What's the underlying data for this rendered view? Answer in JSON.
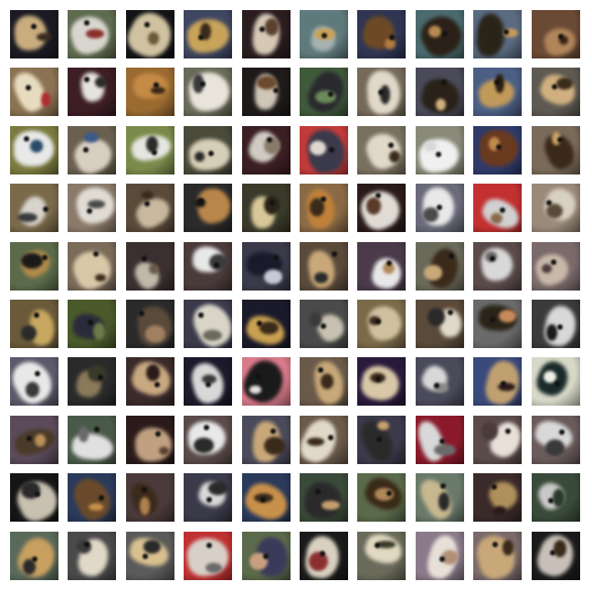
{
  "grid": {
    "rows": 10,
    "cols": 10,
    "samples": [
      {
        "bg": "#1b1a22",
        "fg": "#c9ad7e",
        "fg2": "#3a2c1f"
      },
      {
        "bg": "#5e6b4f",
        "fg": "#d9d6cf",
        "fg2": "#8a2f2a"
      },
      {
        "bg": "#121316",
        "fg": "#d0c2a0",
        "fg2": "#6a5a3a"
      },
      {
        "bg": "#3e4660",
        "fg": "#c8a35a",
        "fg2": "#3b2a1a"
      },
      {
        "bg": "#2a1c1f",
        "fg": "#d5c8b5",
        "fg2": "#5a4030"
      },
      {
        "bg": "#5f7a7c",
        "fg": "#a6b3b0",
        "fg2": "#c9a15a"
      },
      {
        "bg": "#2f3552",
        "fg": "#6d4a25",
        "fg2": "#b47b3e"
      },
      {
        "bg": "#4a6a6d",
        "fg": "#2b2118",
        "fg2": "#b58a50"
      },
      {
        "bg": "#5a6a80",
        "fg": "#2a2418",
        "fg2": "#c69a5a"
      },
      {
        "bg": "#6b4a35",
        "fg": "#b0855a",
        "fg2": "#3a2515"
      },
      {
        "bg": "#8a7252",
        "fg": "#e8dcc0",
        "fg2": "#b02a30"
      },
      {
        "bg": "#3c1e24",
        "fg": "#e6e2dc",
        "fg2": "#2a2a2a"
      },
      {
        "bg": "#9a6a30",
        "fg": "#c58a45",
        "fg2": "#3a2614"
      },
      {
        "bg": "#6a6a58",
        "fg": "#e8e4dc",
        "fg2": "#3a3a3a"
      },
      {
        "bg": "#1f1a1a",
        "fg": "#cfc6b8",
        "fg2": "#6b4a2e"
      },
      {
        "bg": "#3f5a3a",
        "fg": "#2a2a2e",
        "fg2": "#6a8a5a"
      },
      {
        "bg": "#756a5a",
        "fg": "#e0d8c8",
        "fg2": "#2a2a2a"
      },
      {
        "bg": "#4a4a5a",
        "fg": "#2a2218",
        "fg2": "#d0b080"
      },
      {
        "bg": "#4b5f85",
        "fg": "#c19a5a",
        "fg2": "#2a1e14"
      },
      {
        "bg": "#5e5a52",
        "fg": "#d0b080",
        "fg2": "#3a2a1a"
      },
      {
        "bg": "#7a7a3e",
        "fg": "#e8e8e8",
        "fg2": "#2a4a6a"
      },
      {
        "bg": "#6a6050",
        "fg": "#d8cfc0",
        "fg2": "#3a5a8a"
      },
      {
        "bg": "#7a8a4a",
        "fg": "#e6e6e0",
        "fg2": "#2a2a2a"
      },
      {
        "bg": "#4a4a3a",
        "fg": "#d6cfb8",
        "fg2": "#2a2a2a"
      },
      {
        "bg": "#3a1e22",
        "fg": "#cfcac4",
        "fg2": "#8a7a6a"
      },
      {
        "bg": "#c23a3a",
        "fg": "#3a3a4a",
        "fg2": "#e0d8d0"
      },
      {
        "bg": "#7a7060",
        "fg": "#e0d8c8",
        "fg2": "#3a2a1a"
      },
      {
        "bg": "#8a8a7a",
        "fg": "#f0f0f0",
        "fg2": "#d8d8d8"
      },
      {
        "bg": "#2f3a6a",
        "fg": "#6a3a1e",
        "fg2": "#c28a4a"
      },
      {
        "bg": "#7a6a5a",
        "fg": "#3a2818",
        "fg2": "#c8a068"
      },
      {
        "bg": "#7a6a4a",
        "fg": "#d8d4cc",
        "fg2": "#3a3a3a"
      },
      {
        "bg": "#8a7a6a",
        "fg": "#e0dcd4",
        "fg2": "#4a4a4a"
      },
      {
        "bg": "#5a4a3a",
        "fg": "#c8b8a0",
        "fg2": "#3a2a1a"
      },
      {
        "bg": "#2a2a2a",
        "fg": "#b8864a",
        "fg2": "#151515"
      },
      {
        "bg": "#3a3a2a",
        "fg": "#d8c898",
        "fg2": "#2a2418"
      },
      {
        "bg": "#8a6a45",
        "fg": "#c0803a",
        "fg2": "#3a2a1a"
      },
      {
        "bg": "#2a1a1a",
        "fg": "#e0dcd4",
        "fg2": "#5a3a2a"
      },
      {
        "bg": "#6a6a7a",
        "fg": "#e8e8e8",
        "fg2": "#4a4a4a"
      },
      {
        "bg": "#c23030",
        "fg": "#d0d0d0",
        "fg2": "#8a6a4a"
      },
      {
        "bg": "#9a8a7a",
        "fg": "#d8d0c0",
        "fg2": "#5a4a3a"
      },
      {
        "bg": "#5a6a4a",
        "fg": "#b08a4a",
        "fg2": "#1a1a1a"
      },
      {
        "bg": "#7a6a58",
        "fg": "#d8c8a8",
        "fg2": "#3a2a1a"
      },
      {
        "bg": "#3a3030",
        "fg": "#c0b8a8",
        "fg2": "#6a5a4a"
      },
      {
        "bg": "#4a3a3a",
        "fg": "#e8e8e8",
        "fg2": "#3a3a3a"
      },
      {
        "bg": "#3a3a4a",
        "fg": "#1a1a2a",
        "fg2": "#c8c8d8"
      },
      {
        "bg": "#5a4a3a",
        "fg": "#c8a878",
        "fg2": "#2a2a2a"
      },
      {
        "bg": "#4a3a4a",
        "fg": "#e8e8e8",
        "fg2": "#b08a5a"
      },
      {
        "bg": "#6a6a5a",
        "fg": "#3a2a1a",
        "fg2": "#c8a878"
      },
      {
        "bg": "#5a4a4a",
        "fg": "#d8d8d8",
        "fg2": "#6a6a6a"
      },
      {
        "bg": "#7a6a6a",
        "fg": "#c8b8a8",
        "fg2": "#4a3a3a"
      },
      {
        "bg": "#6a5a3a",
        "fg": "#c8a860",
        "fg2": "#2a2a2a"
      },
      {
        "bg": "#4a5a2a",
        "fg": "#2a2a3a",
        "fg2": "#6a7a4a"
      },
      {
        "bg": "#2a2a2a",
        "fg": "#5a4a3a",
        "fg2": "#a08060"
      },
      {
        "bg": "#3a3a4a",
        "fg": "#d8d4c8",
        "fg2": "#6a6a5a"
      },
      {
        "bg": "#1a1a2a",
        "fg": "#c8a050",
        "fg2": "#3a2a1a"
      },
      {
        "bg": "#4a4a4a",
        "fg": "#c8c0b0",
        "fg2": "#3a3a3a"
      },
      {
        "bg": "#7a6a4a",
        "fg": "#d0c0a0",
        "fg2": "#3a2a1a"
      },
      {
        "bg": "#5a4a3a",
        "fg": "#e0d8c8",
        "fg2": "#2a2a2a"
      },
      {
        "bg": "#6a6a6a",
        "fg": "#2a2418",
        "fg2": "#c88a5a"
      },
      {
        "bg": "#3a3a3a",
        "fg": "#d8d8d8",
        "fg2": "#1a1a1a"
      },
      {
        "bg": "#5a5a6a",
        "fg": "#e8e8e8",
        "fg2": "#3a3a3a"
      },
      {
        "bg": "#2a2a2a",
        "fg": "#8a7a5a",
        "fg2": "#3a3a2a"
      },
      {
        "bg": "#3a2a2a",
        "fg": "#c8a880",
        "fg2": "#2a1a1a"
      },
      {
        "bg": "#1a1a2a",
        "fg": "#d8d8d8",
        "fg2": "#3a3a3a"
      },
      {
        "bg": "#d87a8a",
        "fg": "#1a1a1a",
        "fg2": "#e8e0e0"
      },
      {
        "bg": "#6a5a4a",
        "fg": "#c8a878",
        "fg2": "#3a2a1a"
      },
      {
        "bg": "#2a1a3a",
        "fg": "#d8c8a8",
        "fg2": "#3a2a1a"
      },
      {
        "bg": "#4a4a5a",
        "fg": "#d8d8d8",
        "fg2": "#8a8a8a"
      },
      {
        "bg": "#3a4a7a",
        "fg": "#c0a070",
        "fg2": "#2a1a1a"
      },
      {
        "bg": "#d8d8c8",
        "fg": "#1a2a2a",
        "fg2": "#f0f0e8"
      },
      {
        "bg": "#5a4a5a",
        "fg": "#4a3a28",
        "fg2": "#b8905a"
      },
      {
        "bg": "#4a5a4a",
        "fg": "#e0e0e0",
        "fg2": "#6a6a6a"
      },
      {
        "bg": "#2a1a1a",
        "fg": "#c0a080",
        "fg2": "#5a4030"
      },
      {
        "bg": "#5a4a4a",
        "fg": "#e8e8e8",
        "fg2": "#2a2a2a"
      },
      {
        "bg": "#4a4a5a",
        "fg": "#c8a878",
        "fg2": "#3a2a1a"
      },
      {
        "bg": "#6a5a4a",
        "fg": "#e0d8c8",
        "fg2": "#3a2a1a"
      },
      {
        "bg": "#3a3a4a",
        "fg": "#2a2a2a",
        "fg2": "#c8a070"
      },
      {
        "bg": "#8a1a2a",
        "fg": "#d8d8d8",
        "fg2": "#6a6a6a"
      },
      {
        "bg": "#5a4a4a",
        "fg": "#e8e0d8",
        "fg2": "#4a3a3a"
      },
      {
        "bg": "#6a5a5a",
        "fg": "#d8d8d8",
        "fg2": "#3a3a3a"
      },
      {
        "bg": "#151515",
        "fg": "#c8c0b0",
        "fg2": "#2a2a2a"
      },
      {
        "bg": "#2a3a5a",
        "fg": "#6a4a2a",
        "fg2": "#c8904a"
      },
      {
        "bg": "#4a3a3a",
        "fg": "#3a2a1a",
        "fg2": "#b08050"
      },
      {
        "bg": "#3a3a4a",
        "fg": "#d8d8d8",
        "fg2": "#2a2a2a"
      },
      {
        "bg": "#2a3a5a",
        "fg": "#c8904a",
        "fg2": "#3a2a1a"
      },
      {
        "bg": "#3a4a3a",
        "fg": "#2a2a2a",
        "fg2": "#c8a070"
      },
      {
        "bg": "#5a6a4a",
        "fg": "#3a2a18",
        "fg2": "#b08858"
      },
      {
        "bg": "#6a7a6a",
        "fg": "#c8b890",
        "fg2": "#2a2a2a"
      },
      {
        "bg": "#3a2a2a",
        "fg": "#b0905a",
        "fg2": "#2a1a1a"
      },
      {
        "bg": "#3a4a3a",
        "fg": "#c8c8c8",
        "fg2": "#2a3a2a"
      },
      {
        "bg": "#5a6a5a",
        "fg": "#c8a060",
        "fg2": "#2a2a2a"
      },
      {
        "bg": "#4a4a4a",
        "fg": "#e0d8c8",
        "fg2": "#3a3a3a"
      },
      {
        "bg": "#5a5a5a",
        "fg": "#d8c090",
        "fg2": "#2a2a2a"
      },
      {
        "bg": "#c03030",
        "fg": "#d8d0c8",
        "fg2": "#6a6a6a"
      },
      {
        "bg": "#5a6a4a",
        "fg": "#3a3a5a",
        "fg2": "#c8a080"
      },
      {
        "bg": "#1a1a1a",
        "fg": "#d8d0c0",
        "fg2": "#8a3030"
      },
      {
        "bg": "#6a6a5a",
        "fg": "#e0d8c0",
        "fg2": "#3a3a2a"
      },
      {
        "bg": "#8a7a8a",
        "fg": "#e8e0d8",
        "fg2": "#b09078"
      },
      {
        "bg": "#7a6a6a",
        "fg": "#c8a878",
        "fg2": "#3a2a1a"
      },
      {
        "bg": "#1a1a1a",
        "fg": "#c8c0b8",
        "fg2": "#3a2a1a"
      }
    ]
  }
}
